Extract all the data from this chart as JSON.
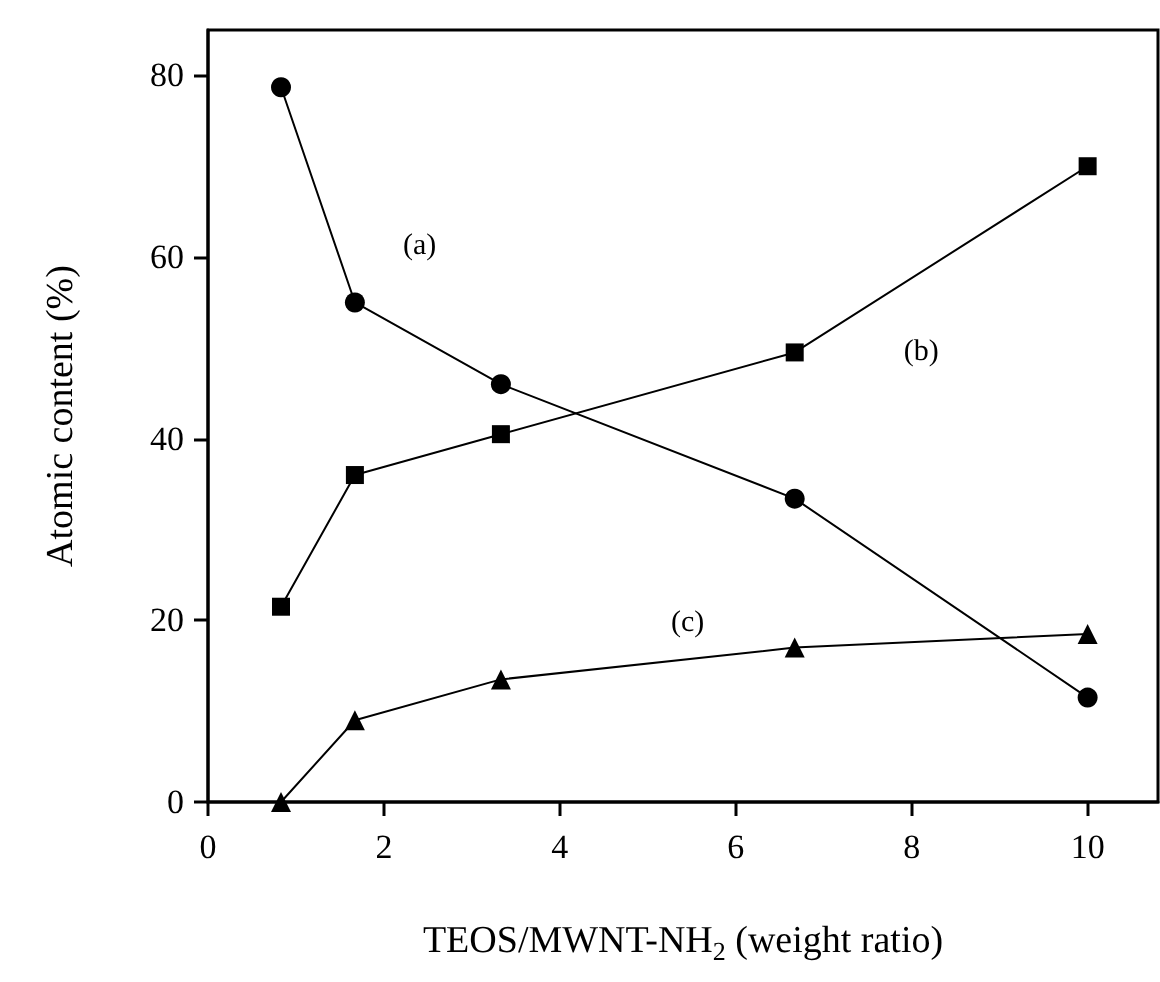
{
  "chart_data": {
    "type": "line",
    "xlabel": "TEOS/MWNT-NH$_{2}$ (weight ratio)",
    "ylabel": "Atomic content (%)",
    "x": [
      0.83,
      1.67,
      3.33,
      6.67,
      10
    ],
    "series": [
      {
        "name": "(a)",
        "color": "#000000",
        "marker": "circle",
        "values": [
          78.7,
          55,
          46,
          33.4,
          11.5
        ]
      },
      {
        "name": "(b)",
        "color": "#000000",
        "marker": "square",
        "values": [
          21.5,
          36,
          40.5,
          49.5,
          70
        ]
      },
      {
        "name": "(c)",
        "color": "#000000",
        "marker": "triangle",
        "values": [
          0,
          9,
          13.5,
          17,
          18.5
        ]
      }
    ],
    "xlim": [
      0,
      10.8
    ],
    "ylim": [
      0,
      85
    ],
    "xticks": [
      0,
      2,
      4,
      6,
      8,
      10
    ],
    "yticks": [
      0,
      20,
      40,
      60,
      80
    ],
    "grid": false,
    "line_style": "solid"
  }
}
